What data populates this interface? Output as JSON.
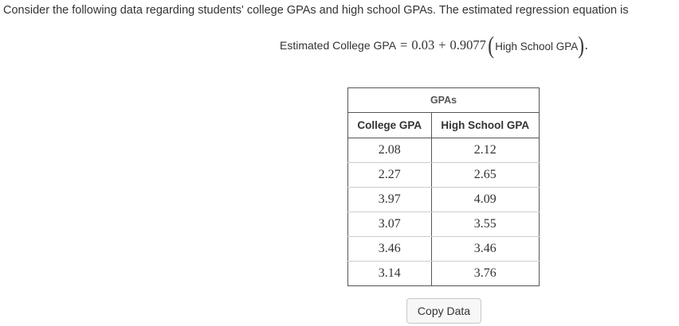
{
  "intro_text": "Consider the following data regarding students' college GPAs and high school GPAs. The estimated regression equation is",
  "equation": {
    "lhs": "Estimated College GPA",
    "equals": "=",
    "intercept": "0.03",
    "plus": "+",
    "slope": "0.9077",
    "open_paren": "(",
    "variable": "High School GPA",
    "close_paren": ")",
    "period": "."
  },
  "table": {
    "group_header": "GPAs",
    "columns": [
      "College GPA",
      "High School GPA"
    ],
    "rows": [
      [
        "2.08",
        "2.12"
      ],
      [
        "2.27",
        "2.65"
      ],
      [
        "3.97",
        "4.09"
      ],
      [
        "3.07",
        "3.55"
      ],
      [
        "3.46",
        "3.46"
      ],
      [
        "3.14",
        "3.76"
      ]
    ]
  },
  "copy_button_label": "Copy Data"
}
